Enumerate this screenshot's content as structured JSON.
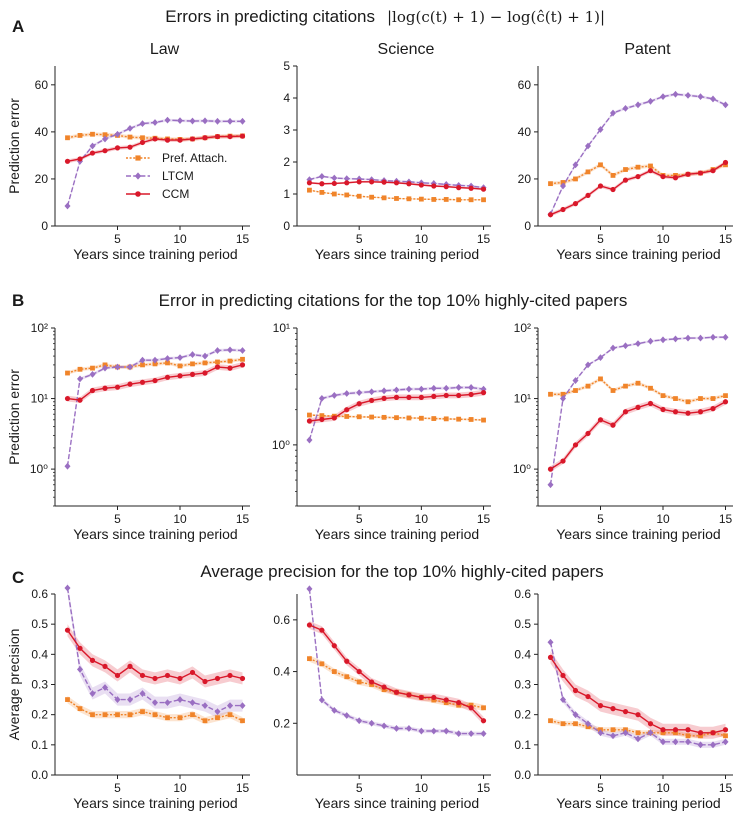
{
  "colors": {
    "pa": "#F0842A",
    "ltcm": "#9A6FC2",
    "ccm": "#D9182A",
    "axis": "#222222"
  },
  "rows": [
    {
      "letter": "A",
      "title": "Errors in predicting citations",
      "formula": "|log(c(t) + 1) − log(ĉ(t) + 1)|"
    },
    {
      "letter": "B",
      "title": "Error in predicting citations for the top 10% highly-cited papers",
      "formula": ""
    },
    {
      "letter": "C",
      "title": "Average precision for the top 10% highly-cited papers",
      "formula": ""
    }
  ],
  "legend": [
    {
      "key": "pa",
      "label": "Pref. Attach."
    },
    {
      "key": "ltcm",
      "label": "LTCM"
    },
    {
      "key": "ccm",
      "label": "CCM"
    }
  ],
  "chart_data": [
    {
      "type": "line",
      "row": 0,
      "col": 0,
      "title": "Law",
      "xlabel": "Years since training period",
      "ylabel": "Prediction error",
      "scale": "linear",
      "xlim": [
        0,
        15.6
      ],
      "ylim": [
        0,
        68
      ],
      "xticks": [
        5,
        10,
        15
      ],
      "yticks": [
        {
          "v": 0,
          "l": "0"
        },
        {
          "v": 20,
          "l": "20"
        },
        {
          "v": 40,
          "l": "40"
        },
        {
          "v": 60,
          "l": "60"
        }
      ],
      "x": [
        1,
        2,
        3,
        4,
        5,
        6,
        7,
        8,
        9,
        10,
        11,
        12,
        13,
        14,
        15
      ],
      "series": [
        {
          "key": "pa",
          "name": "Pref. Attach.",
          "values": [
            37.5,
            38.5,
            39,
            38.8,
            38.5,
            37.8,
            37.5,
            37.3,
            37,
            36.8,
            37,
            37.5,
            38,
            38.2,
            38.3
          ],
          "band": 0.8
        },
        {
          "key": "ltcm",
          "name": "LTCM",
          "values": [
            8.5,
            27.5,
            34,
            37,
            39,
            41.5,
            43.5,
            44,
            45,
            44.8,
            44.6,
            44.7,
            44.5,
            44.5,
            44.5
          ],
          "band": 0.6
        },
        {
          "key": "ccm",
          "name": "CCM",
          "values": [
            27.5,
            28.5,
            31,
            32,
            33.2,
            33.5,
            35.5,
            37,
            36.5,
            36.5,
            37,
            37.5,
            38,
            38,
            38.2
          ],
          "band": 0.8
        }
      ]
    },
    {
      "type": "line",
      "row": 0,
      "col": 1,
      "title": "Science",
      "xlabel": "Years since training period",
      "ylabel": "",
      "scale": "linear",
      "xlim": [
        0,
        15.6
      ],
      "ylim": [
        0,
        5
      ],
      "xticks": [
        5,
        10,
        15
      ],
      "yticks": [
        {
          "v": 0,
          "l": "0"
        },
        {
          "v": 1,
          "l": "1"
        },
        {
          "v": 2,
          "l": "2"
        },
        {
          "v": 3,
          "l": "3"
        },
        {
          "v": 4,
          "l": "4"
        },
        {
          "v": 5,
          "l": "5"
        }
      ],
      "x": [
        1,
        2,
        3,
        4,
        5,
        6,
        7,
        8,
        9,
        10,
        11,
        12,
        13,
        14,
        15
      ],
      "series": [
        {
          "key": "pa",
          "name": "Pref. Attach.",
          "values": [
            1.12,
            1.05,
            1.0,
            0.97,
            0.93,
            0.9,
            0.88,
            0.86,
            0.85,
            0.84,
            0.83,
            0.83,
            0.82,
            0.82,
            0.82
          ],
          "band": 0.02
        },
        {
          "key": "ltcm",
          "name": "LTCM",
          "values": [
            1.45,
            1.55,
            1.5,
            1.48,
            1.47,
            1.45,
            1.42,
            1.4,
            1.38,
            1.35,
            1.33,
            1.3,
            1.27,
            1.25,
            1.2
          ],
          "band": 0.03
        },
        {
          "key": "ccm",
          "name": "CCM",
          "values": [
            1.35,
            1.32,
            1.33,
            1.35,
            1.38,
            1.38,
            1.37,
            1.35,
            1.32,
            1.28,
            1.25,
            1.23,
            1.2,
            1.18,
            1.15
          ],
          "band": 0.03
        }
      ]
    },
    {
      "type": "line",
      "row": 0,
      "col": 2,
      "title": "Patent",
      "xlabel": "Years since training period",
      "ylabel": "",
      "scale": "linear",
      "xlim": [
        0,
        15.6
      ],
      "ylim": [
        0,
        68
      ],
      "xticks": [
        5,
        10,
        15
      ],
      "yticks": [
        {
          "v": 0,
          "l": "0"
        },
        {
          "v": 20,
          "l": "20"
        },
        {
          "v": 40,
          "l": "40"
        },
        {
          "v": 60,
          "l": "60"
        }
      ],
      "x": [
        1,
        2,
        3,
        4,
        5,
        6,
        7,
        8,
        9,
        10,
        11,
        12,
        13,
        14,
        15
      ],
      "series": [
        {
          "key": "pa",
          "name": "Pref. Attach.",
          "values": [
            18,
            18.5,
            20,
            23,
            26,
            21.5,
            24,
            25,
            25.5,
            21.5,
            21.5,
            22,
            22.5,
            24,
            26
          ],
          "band": 0.8
        },
        {
          "key": "ltcm",
          "name": "LTCM",
          "values": [
            5,
            17,
            26,
            34,
            41,
            48,
            50,
            51.5,
            53,
            55,
            56,
            55.5,
            55,
            54,
            51.5
          ],
          "band": 0.6
        },
        {
          "key": "ccm",
          "name": "CCM",
          "values": [
            4.8,
            7,
            9.5,
            13,
            17,
            15.5,
            19.5,
            21,
            23.5,
            21,
            20.5,
            22,
            22.5,
            23.5,
            27
          ],
          "band": 0.8
        }
      ]
    },
    {
      "type": "line",
      "row": 1,
      "col": 0,
      "title": "",
      "xlabel": "Years since training period",
      "ylabel": "Prediction error",
      "scale": "log",
      "xlim": [
        0,
        15.6
      ],
      "ylim": [
        0.3,
        100
      ],
      "xticks": [
        5,
        10,
        15
      ],
      "yticks": [
        {
          "v": 1,
          "l": "10⁰"
        },
        {
          "v": 10,
          "l": "10¹"
        },
        {
          "v": 100,
          "l": "10²"
        }
      ],
      "x": [
        1,
        2,
        3,
        4,
        5,
        6,
        7,
        8,
        9,
        10,
        11,
        12,
        13,
        14,
        15
      ],
      "series": [
        {
          "key": "pa",
          "name": "Pref. Attach.",
          "values": [
            23,
            26,
            27,
            30,
            28,
            28,
            30,
            31,
            32,
            29,
            31,
            32,
            33,
            34,
            36
          ],
          "band": 0.06
        },
        {
          "key": "ltcm",
          "name": "LTCM",
          "values": [
            1.1,
            19,
            22,
            27,
            28,
            28,
            35,
            35,
            37,
            38,
            42,
            40,
            48,
            49,
            48
          ],
          "band": 0.05
        },
        {
          "key": "ccm",
          "name": "CCM",
          "values": [
            10,
            9.5,
            13,
            14,
            14.5,
            16,
            17,
            18,
            20,
            21,
            22,
            23,
            28,
            27,
            30
          ],
          "band": 0.1
        }
      ]
    },
    {
      "type": "line",
      "row": 1,
      "col": 1,
      "title": "",
      "xlabel": "Years since training period",
      "ylabel": "",
      "scale": "log",
      "xlim": [
        0,
        15.6
      ],
      "ylim": [
        0.3,
        10
      ],
      "xticks": [
        5,
        10,
        15
      ],
      "yticks": [
        {
          "v": 1,
          "l": "10⁰"
        },
        {
          "v": 10,
          "l": "10¹"
        }
      ],
      "x": [
        1,
        2,
        3,
        4,
        5,
        6,
        7,
        8,
        9,
        10,
        11,
        12,
        13,
        14,
        15
      ],
      "series": [
        {
          "key": "pa",
          "name": "Pref. Attach.",
          "values": [
            1.8,
            1.78,
            1.76,
            1.75,
            1.74,
            1.73,
            1.72,
            1.71,
            1.7,
            1.69,
            1.68,
            1.67,
            1.66,
            1.65,
            1.63
          ],
          "band": 0.02
        },
        {
          "key": "ltcm",
          "name": "LTCM",
          "values": [
            1.1,
            2.5,
            2.65,
            2.75,
            2.8,
            2.85,
            2.9,
            2.95,
            3.0,
            3.0,
            3.05,
            3.05,
            3.1,
            3.1,
            3.0
          ],
          "band": 0.03
        },
        {
          "key": "ccm",
          "name": "CCM",
          "values": [
            1.6,
            1.65,
            1.7,
            2.0,
            2.25,
            2.4,
            2.5,
            2.55,
            2.55,
            2.55,
            2.6,
            2.65,
            2.65,
            2.7,
            2.8
          ],
          "band": 0.06
        }
      ]
    },
    {
      "type": "line",
      "row": 1,
      "col": 2,
      "title": "",
      "xlabel": "Years since training period",
      "ylabel": "",
      "scale": "log",
      "xlim": [
        0,
        15.6
      ],
      "ylim": [
        0.3,
        100
      ],
      "xticks": [
        5,
        10,
        15
      ],
      "yticks": [
        {
          "v": 1,
          "l": "10⁰"
        },
        {
          "v": 10,
          "l": "10¹"
        },
        {
          "v": 100,
          "l": "10²"
        }
      ],
      "x": [
        1,
        2,
        3,
        4,
        5,
        6,
        7,
        8,
        9,
        10,
        11,
        12,
        13,
        14,
        15
      ],
      "series": [
        {
          "key": "pa",
          "name": "Pref. Attach.",
          "values": [
            11.5,
            11.5,
            13,
            15,
            19,
            13,
            15,
            16.5,
            14,
            11,
            10,
            9,
            10,
            10,
            11
          ],
          "band": 0.06
        },
        {
          "key": "ltcm",
          "name": "LTCM",
          "values": [
            0.6,
            10,
            18,
            30,
            38,
            52,
            56,
            60,
            65,
            68,
            70,
            72,
            72,
            74,
            74
          ],
          "band": 0.04
        },
        {
          "key": "ccm",
          "name": "CCM",
          "values": [
            1.0,
            1.3,
            2.2,
            3.2,
            5,
            4.2,
            6.5,
            7.5,
            8.5,
            7,
            6.5,
            6.2,
            6.5,
            7.2,
            9
          ],
          "band": 0.1
        }
      ]
    },
    {
      "type": "line",
      "row": 2,
      "col": 0,
      "title": "",
      "xlabel": "Years since training period",
      "ylabel": "Average precision",
      "scale": "linear",
      "xlim": [
        0,
        15.6
      ],
      "ylim": [
        0,
        0.6
      ],
      "xticks": [
        5,
        10,
        15
      ],
      "yticks": [
        {
          "v": 0,
          "l": "0.0"
        },
        {
          "v": 0.1,
          "l": "0.1"
        },
        {
          "v": 0.2,
          "l": "0.2"
        },
        {
          "v": 0.3,
          "l": "0.3"
        },
        {
          "v": 0.4,
          "l": "0.4"
        },
        {
          "v": 0.5,
          "l": "0.5"
        },
        {
          "v": 0.6,
          "l": "0.6"
        }
      ],
      "x": [
        1,
        2,
        3,
        4,
        5,
        6,
        7,
        8,
        9,
        10,
        11,
        12,
        13,
        14,
        15
      ],
      "series": [
        {
          "key": "pa",
          "name": "Pref. Attach.",
          "values": [
            0.25,
            0.22,
            0.2,
            0.2,
            0.2,
            0.2,
            0.21,
            0.2,
            0.19,
            0.19,
            0.2,
            0.18,
            0.19,
            0.2,
            0.18
          ],
          "band": 0.012
        },
        {
          "key": "ltcm",
          "name": "LTCM",
          "values": [
            0.62,
            0.35,
            0.27,
            0.29,
            0.25,
            0.25,
            0.27,
            0.24,
            0.24,
            0.25,
            0.24,
            0.23,
            0.21,
            0.23,
            0.23
          ],
          "band": 0.02
        },
        {
          "key": "ccm",
          "name": "CCM",
          "values": [
            0.48,
            0.42,
            0.38,
            0.36,
            0.33,
            0.36,
            0.33,
            0.32,
            0.33,
            0.32,
            0.34,
            0.31,
            0.32,
            0.33,
            0.32
          ],
          "band": 0.02
        }
      ]
    },
    {
      "type": "line",
      "row": 2,
      "col": 1,
      "title": "",
      "xlabel": "Years since training period",
      "ylabel": "",
      "scale": "linear",
      "xlim": [
        0,
        15.6
      ],
      "ylim": [
        0,
        0.7
      ],
      "xticks": [
        5,
        10,
        15
      ],
      "yticks": [
        {
          "v": 0.2,
          "l": "0.2"
        },
        {
          "v": 0.4,
          "l": "0.4"
        },
        {
          "v": 0.6,
          "l": "0.6"
        }
      ],
      "x": [
        1,
        2,
        3,
        4,
        5,
        6,
        7,
        8,
        9,
        10,
        11,
        12,
        13,
        14,
        15
      ],
      "series": [
        {
          "key": "pa",
          "name": "Pref. Attach.",
          "values": [
            0.45,
            0.43,
            0.4,
            0.38,
            0.36,
            0.35,
            0.33,
            0.32,
            0.31,
            0.3,
            0.29,
            0.28,
            0.27,
            0.27,
            0.26
          ],
          "band": 0.012
        },
        {
          "key": "ltcm",
          "name": "LTCM",
          "values": [
            0.72,
            0.29,
            0.25,
            0.23,
            0.21,
            0.2,
            0.19,
            0.18,
            0.18,
            0.17,
            0.17,
            0.17,
            0.16,
            0.16,
            0.16
          ],
          "band": 0.008
        },
        {
          "key": "ccm",
          "name": "CCM",
          "values": [
            0.58,
            0.56,
            0.5,
            0.44,
            0.4,
            0.36,
            0.34,
            0.32,
            0.31,
            0.3,
            0.3,
            0.29,
            0.28,
            0.26,
            0.21
          ],
          "band": 0.015
        }
      ]
    },
    {
      "type": "line",
      "row": 2,
      "col": 2,
      "title": "",
      "xlabel": "Years since training period",
      "ylabel": "",
      "scale": "linear",
      "xlim": [
        0,
        15.6
      ],
      "ylim": [
        0,
        0.6
      ],
      "xticks": [
        5,
        10,
        15
      ],
      "yticks": [
        {
          "v": 0,
          "l": "0.0"
        },
        {
          "v": 0.1,
          "l": "0.1"
        },
        {
          "v": 0.2,
          "l": "0.2"
        },
        {
          "v": 0.3,
          "l": "0.3"
        },
        {
          "v": 0.4,
          "l": "0.4"
        },
        {
          "v": 0.5,
          "l": "0.5"
        },
        {
          "v": 0.6,
          "l": "0.6"
        }
      ],
      "x": [
        1,
        2,
        3,
        4,
        5,
        6,
        7,
        8,
        9,
        10,
        11,
        12,
        13,
        14,
        15
      ],
      "series": [
        {
          "key": "pa",
          "name": "Pref. Attach.",
          "values": [
            0.18,
            0.17,
            0.17,
            0.16,
            0.15,
            0.15,
            0.15,
            0.14,
            0.14,
            0.14,
            0.14,
            0.13,
            0.13,
            0.14,
            0.13
          ],
          "band": 0.008
        },
        {
          "key": "ltcm",
          "name": "LTCM",
          "values": [
            0.44,
            0.25,
            0.2,
            0.17,
            0.14,
            0.13,
            0.14,
            0.12,
            0.14,
            0.11,
            0.11,
            0.11,
            0.1,
            0.1,
            0.11
          ],
          "band": 0.01
        },
        {
          "key": "ccm",
          "name": "CCM",
          "values": [
            0.39,
            0.33,
            0.28,
            0.26,
            0.23,
            0.22,
            0.21,
            0.2,
            0.17,
            0.15,
            0.15,
            0.15,
            0.14,
            0.14,
            0.15
          ],
          "band": 0.02
        }
      ]
    }
  ]
}
